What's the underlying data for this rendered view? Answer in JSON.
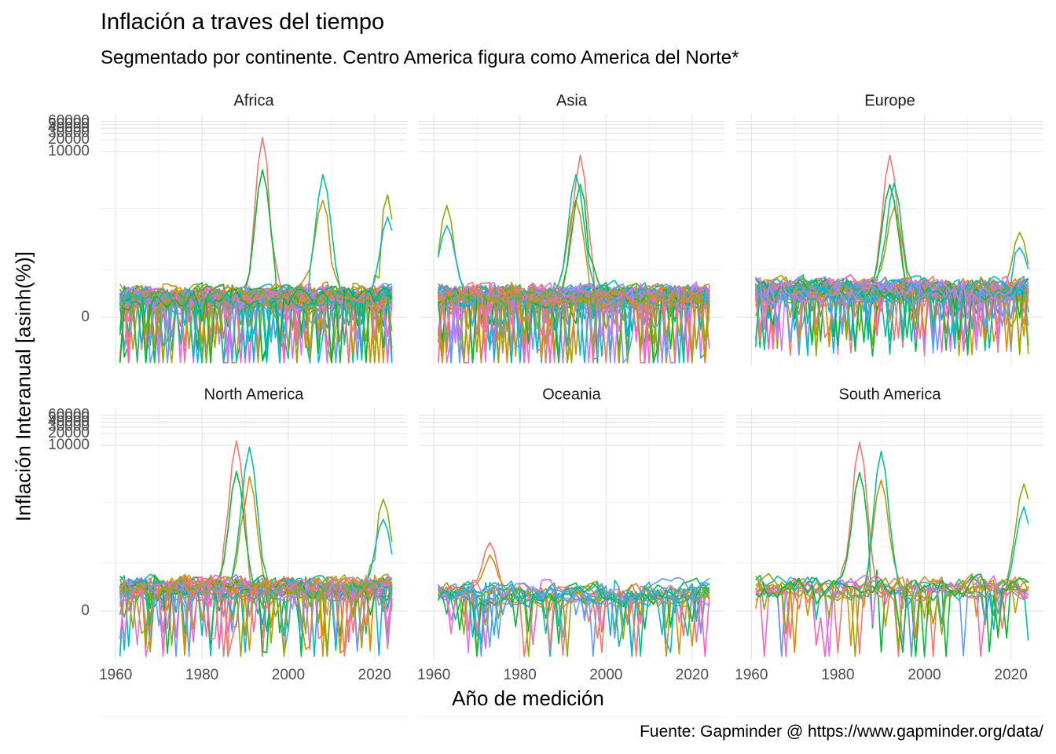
{
  "chart_data": {
    "type": "line",
    "title": "Inflación a traves del tiempo",
    "subtitle": "Segmentado por continente. Centro America figura como America del Norte*",
    "xlabel": "Año de medición",
    "ylabel": "Inflación Interanual [asinh(%)]",
    "caption": "Fuente: Gapminder @ https://www.gapminder.org/data/",
    "x_ticks": [
      1960,
      1980,
      2000,
      2020
    ],
    "x_range": [
      1960,
      2024
    ],
    "y_scale": "asinh",
    "y_ticks": [
      0,
      10000,
      20000,
      30000,
      40000,
      50000,
      60000
    ],
    "y_tick_labels": [
      "0",
      "10000",
      "20000",
      "30000",
      "40000",
      "50000",
      "60000"
    ],
    "grid": true,
    "legend": "none",
    "facets": [
      "Africa",
      "Asia",
      "Europe",
      "North America",
      "Oceania",
      "South America"
    ],
    "series_palette": [
      "#F8766D",
      "#D39200",
      "#93AA00",
      "#00BA38",
      "#00C19F",
      "#00B9E3",
      "#619CFF",
      "#DB72FB",
      "#FF61C3"
    ],
    "facet_data": {
      "Africa": {
        "series_count": 50,
        "typical_range": [
          -30,
          100
        ],
        "peaks": [
          {
            "year": 1994,
            "value": 23000
          },
          {
            "year": 2008,
            "value": 2500
          },
          {
            "year": 2023,
            "value": 750
          }
        ]
      },
      "Asia": {
        "series_count": 48,
        "typical_range": [
          -30,
          120
        ],
        "peaks": [
          {
            "year": 1994,
            "value": 8000
          },
          {
            "year": 1993,
            "value": 2500
          },
          {
            "year": 1963,
            "value": 400
          }
        ]
      },
      "Europe": {
        "series_count": 44,
        "typical_range": [
          -5,
          40
        ],
        "peaks": [
          {
            "year": 1992,
            "value": 8000
          },
          {
            "year": 1993,
            "value": 1500
          },
          {
            "year": 2022,
            "value": 80
          }
        ]
      },
      "North America": {
        "series_count": 30,
        "typical_range": [
          -10,
          50
        ],
        "peaks": [
          {
            "year": 1988,
            "value": 13000
          },
          {
            "year": 1991,
            "value": 9000
          },
          {
            "year": 2022,
            "value": 400
          }
        ]
      },
      "Oceania": {
        "series_count": 16,
        "typical_range": [
          -10,
          25
        ],
        "peaks": [
          {
            "year": 1973,
            "value": 30
          }
        ]
      },
      "South America": {
        "series_count": 13,
        "typical_range": [
          -20,
          100
        ],
        "peaks": [
          {
            "year": 1985,
            "value": 12000
          },
          {
            "year": 1990,
            "value": 7000
          },
          {
            "year": 2023,
            "value": 1000
          }
        ]
      }
    }
  }
}
